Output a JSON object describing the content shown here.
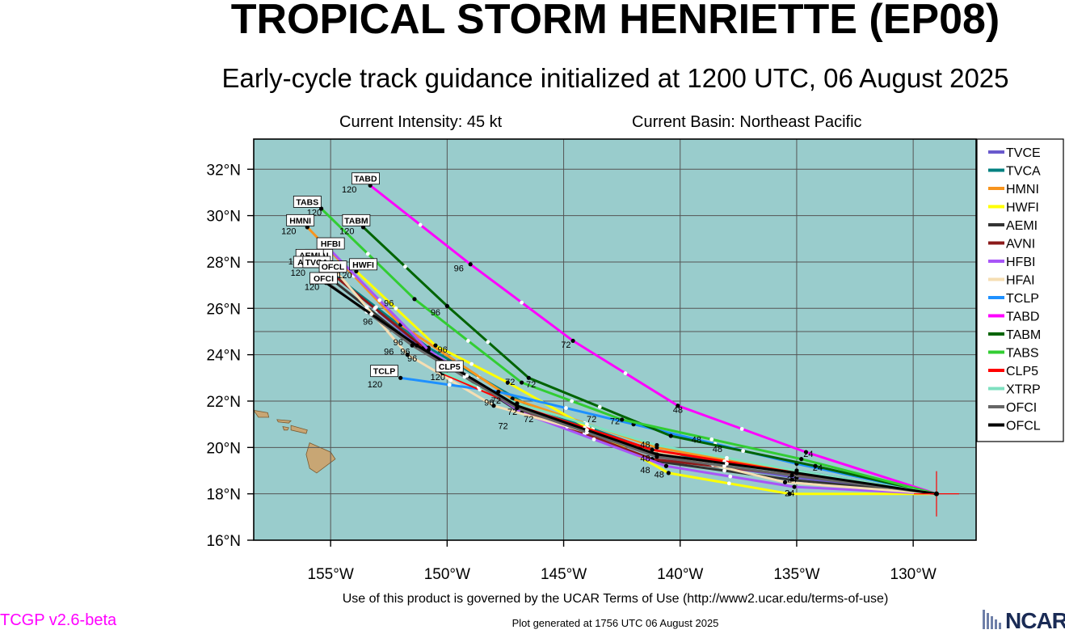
{
  "header": {
    "title": "TROPICAL STORM HENRIETTE (EP08)",
    "subtitle": "Early-cycle track guidance initialized at 1200 UTC, 06 August 2025",
    "current_intensity": "Current Intensity: 45 kt",
    "current_basin": "Current Basin: Northeast Pacific"
  },
  "footer": {
    "terms": "Use of this product is governed by the UCAR Terms of Use (http://www2.ucar.edu/terms-of-use)",
    "generated": "Plot generated at 1756 UTC   06 August 2025",
    "version": "TCGP v2.6-beta",
    "logo_text": "NCAR"
  },
  "colors": {
    "ocean": "#99cccc",
    "land": "#c8a674",
    "grid": "#555555"
  },
  "chart_data": {
    "type": "map-track",
    "xlim": [
      -158.3,
      -127.3
    ],
    "ylim": [
      16,
      33.3
    ],
    "x_ticks": [
      {
        "value": -155,
        "label": "155°W"
      },
      {
        "value": -150,
        "label": "150°W"
      },
      {
        "value": -145,
        "label": "145°W"
      },
      {
        "value": -140,
        "label": "140°W"
      },
      {
        "value": -135,
        "label": "135°W"
      },
      {
        "value": -130,
        "label": "130°W"
      }
    ],
    "y_ticks": [
      {
        "value": 16,
        "label": "16°N"
      },
      {
        "value": 18,
        "label": "18°N"
      },
      {
        "value": 20,
        "label": "20°N"
      },
      {
        "value": 22,
        "label": "22°N"
      },
      {
        "value": 24,
        "label": "24°N"
      },
      {
        "value": 26,
        "label": "26°N"
      },
      {
        "value": 28,
        "label": "28°N"
      },
      {
        "value": 30,
        "label": "30°N"
      },
      {
        "value": 32,
        "label": "32°N"
      }
    ],
    "initial_position": {
      "lon": -129.0,
      "lat": 18.0
    },
    "legend_position": "right",
    "series": [
      {
        "name": "TVCE",
        "color": "#6a5acd",
        "points": [
          [
            -129,
            18
          ],
          [
            -135,
            18.7
          ],
          [
            -141,
            19.6
          ],
          [
            -147,
            21.7
          ],
          [
            -151,
            24.2
          ],
          [
            -155,
            27.6
          ]
        ]
      },
      {
        "name": "TVCA",
        "color": "#008080",
        "points": [
          [
            -129,
            18
          ],
          [
            -135,
            19.0
          ],
          [
            -141,
            19.8
          ],
          [
            -146.5,
            21.8
          ],
          [
            -150.8,
            24.3
          ],
          [
            -155.3,
            27.8
          ]
        ]
      },
      {
        "name": "HMNI",
        "color": "#f7941d",
        "points": [
          [
            -129,
            18
          ],
          [
            -135,
            18.9
          ],
          [
            -141,
            20.0
          ],
          [
            -147.2,
            22.1
          ],
          [
            -152,
            25.3
          ],
          [
            -156,
            29.5
          ]
        ]
      },
      {
        "name": "HWFI",
        "color": "#ffff00",
        "points": [
          [
            -129,
            18
          ],
          [
            -135.3,
            18.0
          ],
          [
            -140.5,
            18.9
          ],
          [
            -147.4,
            22.8
          ],
          [
            -150.5,
            24.4
          ],
          [
            -153.9,
            27.6
          ]
        ]
      },
      {
        "name": "AEMI",
        "color": "#333333",
        "points": [
          [
            -129,
            18
          ],
          [
            -135.2,
            18.6
          ],
          [
            -141,
            19.4
          ],
          [
            -147,
            21.6
          ],
          [
            -151.5,
            24.5
          ],
          [
            -155.4,
            27.6
          ]
        ]
      },
      {
        "name": "AVNI",
        "color": "#8b1a1a",
        "points": [
          [
            -129,
            18
          ],
          [
            -135,
            18.8
          ],
          [
            -141.2,
            19.5
          ],
          [
            -147,
            21.7
          ],
          [
            -151,
            24.3
          ],
          [
            -155.2,
            27.7
          ]
        ]
      },
      {
        "name": "HFBI",
        "color": "#a855f7",
        "points": [
          [
            -129,
            18
          ],
          [
            -135.1,
            18.3
          ],
          [
            -140.6,
            19.2
          ],
          [
            -146.8,
            21.5
          ],
          [
            -150.8,
            24.2
          ],
          [
            -155,
            28.5
          ]
        ]
      },
      {
        "name": "HFAI",
        "color": "#f5deb3",
        "points": [
          [
            -129,
            18
          ],
          [
            -135.5,
            18.5
          ],
          [
            -141.7,
            20.0
          ],
          [
            -148,
            21.8
          ],
          [
            -151.7,
            24.0
          ],
          [
            -155.2,
            28.1
          ]
        ]
      },
      {
        "name": "TCLP",
        "color": "#1e90ff",
        "points": [
          [
            -129,
            18
          ],
          [
            -135,
            19.3
          ],
          [
            -142,
            21.0
          ],
          [
            -147.8,
            22.4
          ],
          [
            -152,
            23.0
          ]
        ]
      },
      {
        "name": "TABD",
        "color": "#ff00ff",
        "points": [
          [
            -129,
            18
          ],
          [
            -134.6,
            19.8
          ],
          [
            -140.1,
            21.8
          ],
          [
            -144.6,
            24.6
          ],
          [
            -149,
            27.9
          ],
          [
            -153.3,
            31.3
          ]
        ]
      },
      {
        "name": "TABM",
        "color": "#006400",
        "points": [
          [
            -129,
            18
          ],
          [
            -134.2,
            19.2
          ],
          [
            -140.4,
            20.5
          ],
          [
            -146.5,
            23.0
          ],
          [
            -150,
            26.1
          ],
          [
            -153.6,
            29.5
          ]
        ]
      },
      {
        "name": "TABS",
        "color": "#32cd32",
        "points": [
          [
            -129,
            18
          ],
          [
            -134.8,
            19.5
          ],
          [
            -142.5,
            21.2
          ],
          [
            -146.8,
            22.8
          ],
          [
            -151.4,
            26.4
          ],
          [
            -155.4,
            30.3
          ]
        ]
      },
      {
        "name": "CLP5",
        "color": "#ff0000",
        "points": [
          [
            -129,
            18
          ],
          [
            -135,
            18.9
          ],
          [
            -141.2,
            19.9
          ],
          [
            -147,
            21.8
          ],
          [
            -150.2,
            23.2
          ]
        ]
      },
      {
        "name": "XTRP",
        "color": "#7fe0c0",
        "points": [
          [
            -129,
            18
          ],
          [
            -135,
            19.0
          ],
          [
            -141,
            20.1
          ],
          [
            -147,
            21.9
          ],
          [
            -150.3,
            23.3
          ]
        ]
      },
      {
        "name": "OFCI",
        "color": "#666666",
        "points": [
          [
            -129,
            18
          ],
          [
            -135.2,
            18.8
          ],
          [
            -141,
            19.6
          ],
          [
            -147,
            21.7
          ],
          [
            -151.5,
            24.4
          ],
          [
            -155.4,
            27.3
          ]
        ]
      },
      {
        "name": "OFCL",
        "color": "#000000",
        "points": [
          [
            -129,
            18
          ],
          [
            -135,
            18.9
          ],
          [
            -141,
            19.7
          ],
          [
            -147,
            21.8
          ],
          [
            -151.3,
            24.4
          ],
          [
            -155.2,
            27.1
          ]
        ]
      }
    ],
    "hour_labels": [
      {
        "text": "24",
        "lon": -134.5,
        "lat": 19.6
      },
      {
        "text": "24",
        "lon": -135.3,
        "lat": 17.9
      },
      {
        "text": "24",
        "lon": -135.2,
        "lat": 18.5
      },
      {
        "text": "24",
        "lon": -134.1,
        "lat": 19.0
      },
      {
        "text": "48",
        "lon": -140.1,
        "lat": 21.5
      },
      {
        "text": "48",
        "lon": -141.5,
        "lat": 20.0
      },
      {
        "text": "48",
        "lon": -140.9,
        "lat": 18.7
      },
      {
        "text": "48",
        "lon": -139.3,
        "lat": 20.2
      },
      {
        "text": "48",
        "lon": -138.4,
        "lat": 19.8
      },
      {
        "text": "48",
        "lon": -141.5,
        "lat": 19.4
      },
      {
        "text": "48",
        "lon": -141.5,
        "lat": 18.9
      },
      {
        "text": "72",
        "lon": -144.9,
        "lat": 24.3
      },
      {
        "text": "72",
        "lon": -142.8,
        "lat": 21.0
      },
      {
        "text": "72",
        "lon": -143.8,
        "lat": 21.1
      },
      {
        "text": "72",
        "lon": -146.4,
        "lat": 22.6
      },
      {
        "text": "72",
        "lon": -147.3,
        "lat": 22.7
      },
      {
        "text": "72",
        "lon": -147.9,
        "lat": 21.9
      },
      {
        "text": "72",
        "lon": -147.2,
        "lat": 21.4
      },
      {
        "text": "72",
        "lon": -146.5,
        "lat": 21.1
      },
      {
        "text": "72",
        "lon": -147.6,
        "lat": 20.8
      },
      {
        "text": "96",
        "lon": -149.5,
        "lat": 27.6
      },
      {
        "text": "96",
        "lon": -150.5,
        "lat": 25.7
      },
      {
        "text": "96",
        "lon": -152.5,
        "lat": 26.1
      },
      {
        "text": "96",
        "lon": -153.4,
        "lat": 25.3
      },
      {
        "text": "96",
        "lon": -152.1,
        "lat": 24.4
      },
      {
        "text": "96",
        "lon": -152.5,
        "lat": 24.0
      },
      {
        "text": "96",
        "lon": -150.2,
        "lat": 24.1
      },
      {
        "text": "96",
        "lon": -151.8,
        "lat": 24.0
      },
      {
        "text": "96",
        "lon": -151.5,
        "lat": 23.7
      },
      {
        "text": "96",
        "lon": -148.2,
        "lat": 21.8
      },
      {
        "text": "120",
        "lon": -154.2,
        "lat": 31.0
      },
      {
        "text": "120",
        "lon": -155.7,
        "lat": 30.0
      },
      {
        "text": "120",
        "lon": -156.8,
        "lat": 29.2
      },
      {
        "text": "120",
        "lon": -154.3,
        "lat": 29.2
      },
      {
        "text": "120",
        "lon": -156.5,
        "lat": 27.9
      },
      {
        "text": "120",
        "lon": -156.4,
        "lat": 27.4
      },
      {
        "text": "120",
        "lon": -155.8,
        "lat": 26.8
      },
      {
        "text": "120",
        "lon": -154.4,
        "lat": 27.3
      },
      {
        "text": "120",
        "lon": -150.4,
        "lat": 22.9
      },
      {
        "text": "120",
        "lon": -153.1,
        "lat": 22.6
      }
    ],
    "model_labels": [
      {
        "text": "TABD",
        "lon": -153.5,
        "lat": 31.6
      },
      {
        "text": "TABS",
        "lon": -156.0,
        "lat": 30.6
      },
      {
        "text": "HMNI",
        "lon": -156.3,
        "lat": 29.8
      },
      {
        "text": "TABM",
        "lon": -153.9,
        "lat": 29.8
      },
      {
        "text": "HFBI",
        "lon": -155.0,
        "lat": 28.8
      },
      {
        "text": "HFAI",
        "lon": -155.5,
        "lat": 28.3
      },
      {
        "text": "AEMI",
        "lon": -155.9,
        "lat": 28.3
      },
      {
        "text": "AVNI",
        "lon": -156.0,
        "lat": 28.0
      },
      {
        "text": "TVCA",
        "lon": -155.6,
        "lat": 28.0
      },
      {
        "text": "OFCL",
        "lon": -154.9,
        "lat": 27.8
      },
      {
        "text": "HWFI",
        "lon": -153.6,
        "lat": 27.9
      },
      {
        "text": "OFCI",
        "lon": -155.3,
        "lat": 27.3
      },
      {
        "text": "CLP5",
        "lon": -149.9,
        "lat": 23.5
      },
      {
        "text": "TCLP",
        "lon": -152.7,
        "lat": 23.3
      }
    ]
  }
}
